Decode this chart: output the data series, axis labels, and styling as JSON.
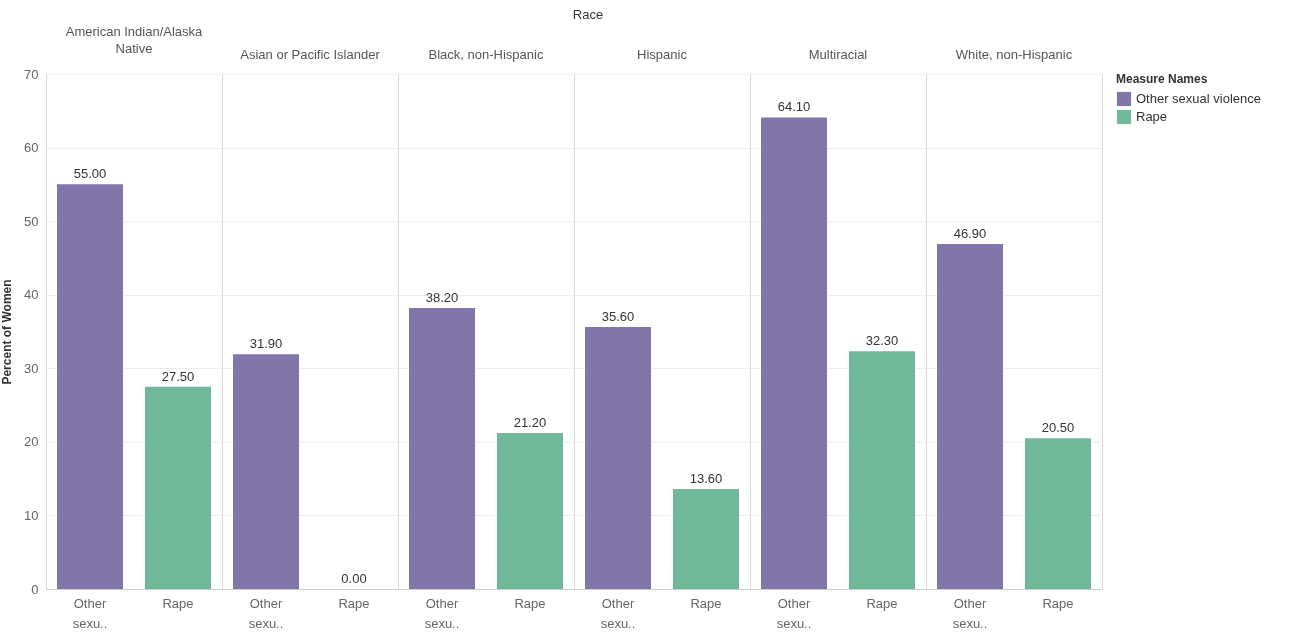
{
  "chart_data": [
    {
      "type": "bar",
      "title": "American Indian/Alaska Native",
      "annotations": [
        "Race"
      ],
      "ylabel": "Percent of Women",
      "categories": [
        "Other sexu..",
        "Rape"
      ],
      "series": [
        {
          "color": "#8175aa",
          "values": [
            55.0,
            null
          ],
          "value_labels": [
            "55.00",
            null
          ]
        },
        {
          "color": "#6fb899",
          "values": [
            null,
            27.5
          ],
          "value_labels": [
            null,
            "27.50"
          ]
        }
      ],
      "ylim": [
        0,
        70
      ],
      "yticks": [
        0,
        10,
        20,
        30,
        40,
        50,
        60,
        70
      ],
      "grid": "y"
    },
    {
      "type": "bar",
      "title": "Asian or Pacific Islander",
      "categories": [
        "Other sexu..",
        "Rape"
      ],
      "series": [
        {
          "color": "#8175aa",
          "values": [
            31.9,
            null
          ],
          "value_labels": [
            "31.90",
            null
          ]
        },
        {
          "color": "#6fb899",
          "values": [
            null,
            0.0
          ],
          "value_labels": [
            null,
            "0.00"
          ]
        }
      ],
      "ylim": [
        0,
        70
      ],
      "yticks": [
        0,
        10,
        20,
        30,
        40,
        50,
        60,
        70
      ],
      "grid": "y",
      "tick_labels": "x"
    },
    {
      "type": "bar",
      "title": "Black, non-Hispanic",
      "categories": [
        "Other sexu..",
        "Rape"
      ],
      "series": [
        {
          "color": "#8175aa",
          "values": [
            38.2,
            null
          ],
          "value_labels": [
            "38.20",
            null
          ]
        },
        {
          "color": "#6fb899",
          "values": [
            null,
            21.2
          ],
          "value_labels": [
            null,
            "21.20"
          ]
        }
      ],
      "ylim": [
        0,
        70
      ],
      "yticks": [
        0,
        10,
        20,
        30,
        40,
        50,
        60,
        70
      ],
      "grid": "y",
      "tick_labels": "x"
    },
    {
      "type": "bar",
      "title": "Hispanic",
      "categories": [
        "Other sexu..",
        "Rape"
      ],
      "series": [
        {
          "color": "#8175aa",
          "values": [
            35.6,
            null
          ],
          "value_labels": [
            "35.60",
            null
          ]
        },
        {
          "color": "#6fb899",
          "values": [
            null,
            13.6
          ],
          "value_labels": [
            null,
            "13.60"
          ]
        }
      ],
      "ylim": [
        0,
        70
      ],
      "yticks": [
        0,
        10,
        20,
        30,
        40,
        50,
        60,
        70
      ],
      "grid": "y",
      "tick_labels": "x"
    },
    {
      "type": "bar",
      "title": "Multiracial",
      "categories": [
        "Other sexu..",
        "Rape"
      ],
      "series": [
        {
          "color": "#8175aa",
          "values": [
            64.1,
            null
          ],
          "value_labels": [
            "64.10",
            null
          ]
        },
        {
          "color": "#6fb899",
          "values": [
            null,
            32.3
          ],
          "value_labels": [
            null,
            "32.30"
          ]
        }
      ],
      "ylim": [
        0,
        70
      ],
      "yticks": [
        0,
        10,
        20,
        30,
        40,
        50,
        60,
        70
      ],
      "grid": "y",
      "tick_labels": "x"
    },
    {
      "type": "bar",
      "title": "White, non-Hispanic",
      "categories": [
        "Other sexu..",
        "Rape"
      ],
      "series": [
        {
          "name": "Other sexual violence",
          "color": "#8175aa",
          "values": [
            46.9,
            null
          ],
          "value_labels": [
            "46.90",
            null
          ]
        },
        {
          "name": "Rape",
          "color": "#6fb899",
          "values": [
            null,
            20.5
          ],
          "value_labels": [
            null,
            "20.50"
          ]
        }
      ],
      "ylim": [
        0,
        70
      ],
      "yticks": [
        0,
        10,
        20,
        30,
        40,
        50,
        60,
        70
      ],
      "grid": "y",
      "tick_labels": "x",
      "legend": "top right",
      "legend_title": "Measure Names"
    }
  ]
}
